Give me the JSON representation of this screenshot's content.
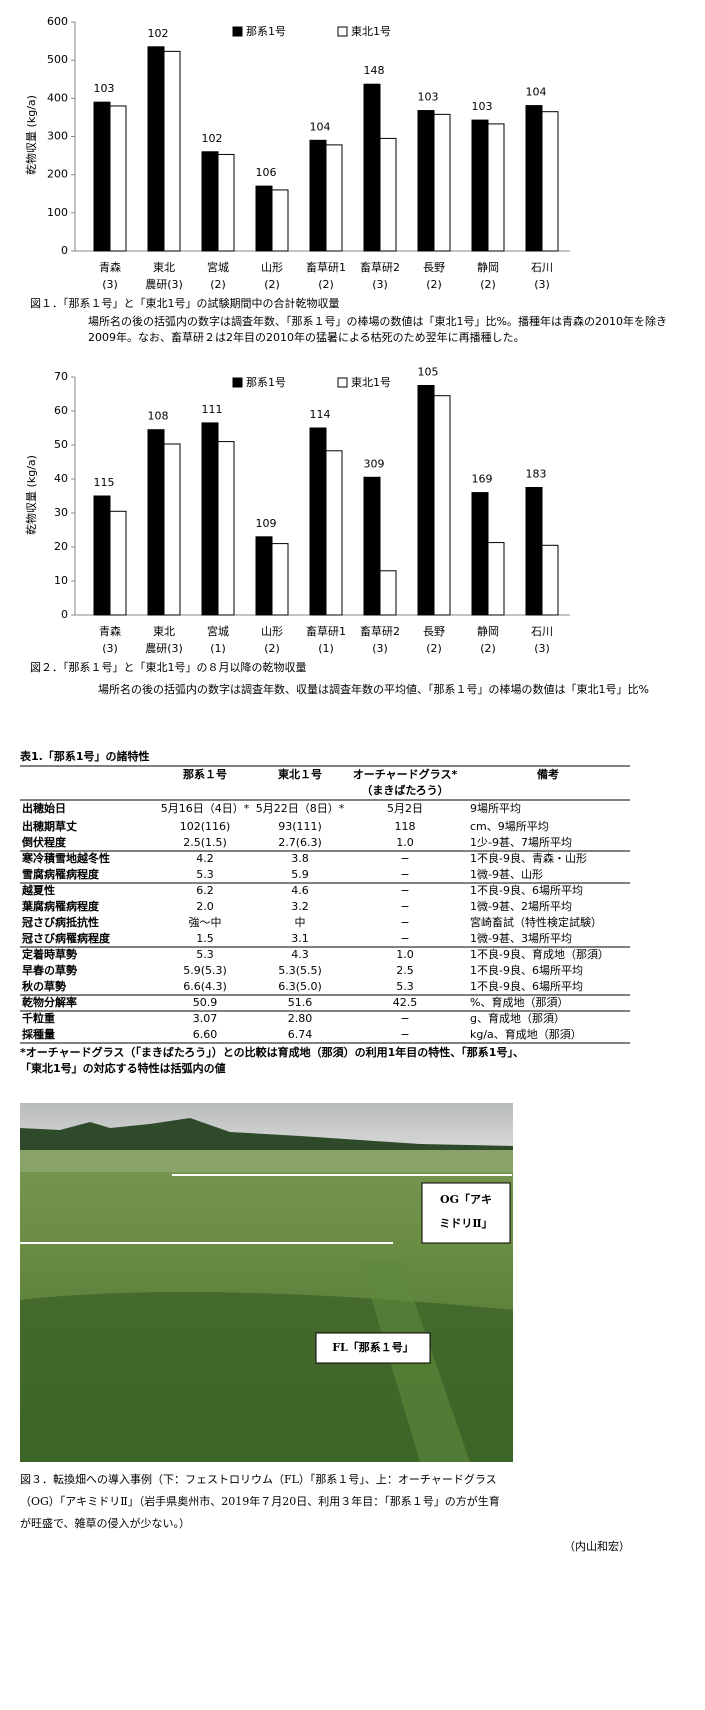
{
  "chart_data": [
    {
      "type": "bar",
      "y_label": "乾物収量 (kg/a)",
      "categories": [
        [
          "青森",
          "(3)"
        ],
        [
          "東北",
          "農研(3)"
        ],
        [
          "宮城",
          "(2)"
        ],
        [
          "山形",
          "(2)"
        ],
        [
          "畜草研1",
          "(2)"
        ],
        [
          "畜草研2",
          "(3)"
        ],
        [
          "長野",
          "(2)"
        ],
        [
          "静岡",
          "(2)"
        ],
        [
          "石川",
          "(3)"
        ]
      ],
      "series": [
        {
          "name": "那系1号",
          "color": "#000000",
          "values": [
            390,
            535,
            260,
            170,
            290,
            437,
            368,
            343,
            381
          ],
          "ratio_labels": [
            103,
            102,
            102,
            106,
            104,
            148,
            103,
            103,
            104
          ]
        },
        {
          "name": "東北1号",
          "color": "#ffffff",
          "values": [
            380,
            523,
            253,
            160,
            278,
            295,
            358,
            333,
            365
          ]
        }
      ],
      "ylim": [
        0,
        600
      ],
      "yticks": [
        0,
        100,
        200,
        300,
        400,
        500,
        600
      ],
      "caption": "図１．「那系１号」と「東北1号」の試験期間中の合計乾物収量",
      "note": [
        "場所名の後の括弧内の数字は調査年数、「那系１号」の棒場の数値は「東北1号」比%。播種年は青森の2010年を除き",
        "2009年。なお、畜草研２は2年目の2010年の猛暑による枯死のため翌年に再播種した。"
      ]
    },
    {
      "type": "bar",
      "y_label": "乾物収量 (kg/a)",
      "categories": [
        [
          "青森",
          "(3)"
        ],
        [
          "東北",
          "農研(3)"
        ],
        [
          "宮城",
          "(1)"
        ],
        [
          "山形",
          "(2)"
        ],
        [
          "畜草研1",
          "(1)"
        ],
        [
          "畜草研2",
          "(3)"
        ],
        [
          "長野",
          "(2)"
        ],
        [
          "静岡",
          "(2)"
        ],
        [
          "石川",
          "(3)"
        ]
      ],
      "series": [
        {
          "name": "那系1号",
          "color": "#000000",
          "values": [
            35,
            54.5,
            56.5,
            23,
            55,
            40.5,
            67.5,
            36,
            37.5
          ],
          "ratio_labels": [
            115,
            108,
            111,
            109,
            114,
            309,
            105,
            169,
            183
          ]
        },
        {
          "name": "東北1号",
          "color": "#ffffff",
          "values": [
            30.5,
            50.3,
            51,
            21,
            48.3,
            13,
            64.5,
            21.3,
            20.5
          ]
        }
      ],
      "ylim": [
        0,
        70
      ],
      "yticks": [
        0,
        10,
        20,
        30,
        40,
        50,
        60,
        70
      ],
      "caption": "図２．「那系１号」と「東北1号」の８月以降の乾物収量",
      "note": [
        "場所名の後の括弧内の数字は調査年数、収量は調査年数の平均値、「那系１号」の棒場の数値は「東北1号」比%"
      ]
    }
  ],
  "table": {
    "title": "表1.「那系1号」の諸特性",
    "header": [
      "那系１号",
      "東北１号",
      "オーチャードグラス*",
      "備考"
    ],
    "header_note": "（まきばたろう）",
    "groups": [
      [
        [
          "出穂始日",
          "5月16日（4日）*",
          "5月22日（8日）*",
          "5月2日",
          "9場所平均"
        ],
        [
          "出穂期草丈",
          "102(116)",
          "93(111)",
          "118",
          "cm、9場所平均"
        ],
        [
          "倒伏程度",
          "2.5(1.5)",
          "2.7(6.3)",
          "1.0",
          "1少-9甚、7場所平均"
        ]
      ],
      [
        [
          "寒冷積雪地越冬性",
          "4.2",
          "3.8",
          "−",
          "1不良-9良、青森・山形"
        ],
        [
          "雪腐病罹病程度",
          "5.3",
          "5.9",
          "−",
          "1微-9甚、山形"
        ]
      ],
      [
        [
          "越夏性",
          "6.2",
          "4.6",
          "−",
          "1不良-9良、6場所平均"
        ],
        [
          "葉腐病罹病程度",
          "2.0",
          "3.2",
          "−",
          "1微-9甚、2場所平均"
        ],
        [
          "冠さび病抵抗性",
          "強～中",
          "中",
          "−",
          "宮崎畜試（特性検定試験）"
        ],
        [
          "冠さび病罹病程度",
          "1.5",
          "3.1",
          "−",
          "1微-9甚、3場所平均"
        ]
      ],
      [
        [
          "定着時草勢",
          "5.3",
          "4.3",
          "1.0",
          "1不良-9良、育成地（那須）"
        ],
        [
          "早春の草勢",
          "5.9(5.3)",
          "5.3(5.5)",
          "2.5",
          "1不良-9良、6場所平均"
        ],
        [
          "秋の草勢",
          "6.6(4.3)",
          "6.3(5.0)",
          "5.3",
          "1不良-9良、6場所平均"
        ]
      ],
      [
        [
          "乾物分解率",
          "50.9",
          "51.6",
          "42.5",
          "%、育成地（那須）"
        ]
      ],
      [
        [
          "千粒重",
          "3.07",
          "2.80",
          "−",
          "g、育成地（那須）"
        ],
        [
          "採種量",
          "6.60",
          "6.74",
          "−",
          "kg/a、育成地（那須）"
        ]
      ]
    ],
    "footnote": [
      "*オーチャードグラス（「まきばたろう」）との比較は育成地（那須）の利用1年目の特性、「那系1号」、",
      "「東北1号」の対応する特性は括弧内の値"
    ]
  },
  "figure3": {
    "og_label": [
      "OG「アキ",
      "ミドリⅡ」"
    ],
    "fl_label": "FL「那系１号」",
    "caption": [
      "図３．転換畑への導入事例（下：フェストロリウム（FL）「那系１号」、上：オーチャードグラス",
      "（OG）「アキミドリⅡ」（岩手県奥州市、2019年７月20日、利用３年目：「那系１号」の方が生育",
      "が旺盛で、雑草の侵入が少ない。）"
    ],
    "author": "（内山和宏）"
  }
}
